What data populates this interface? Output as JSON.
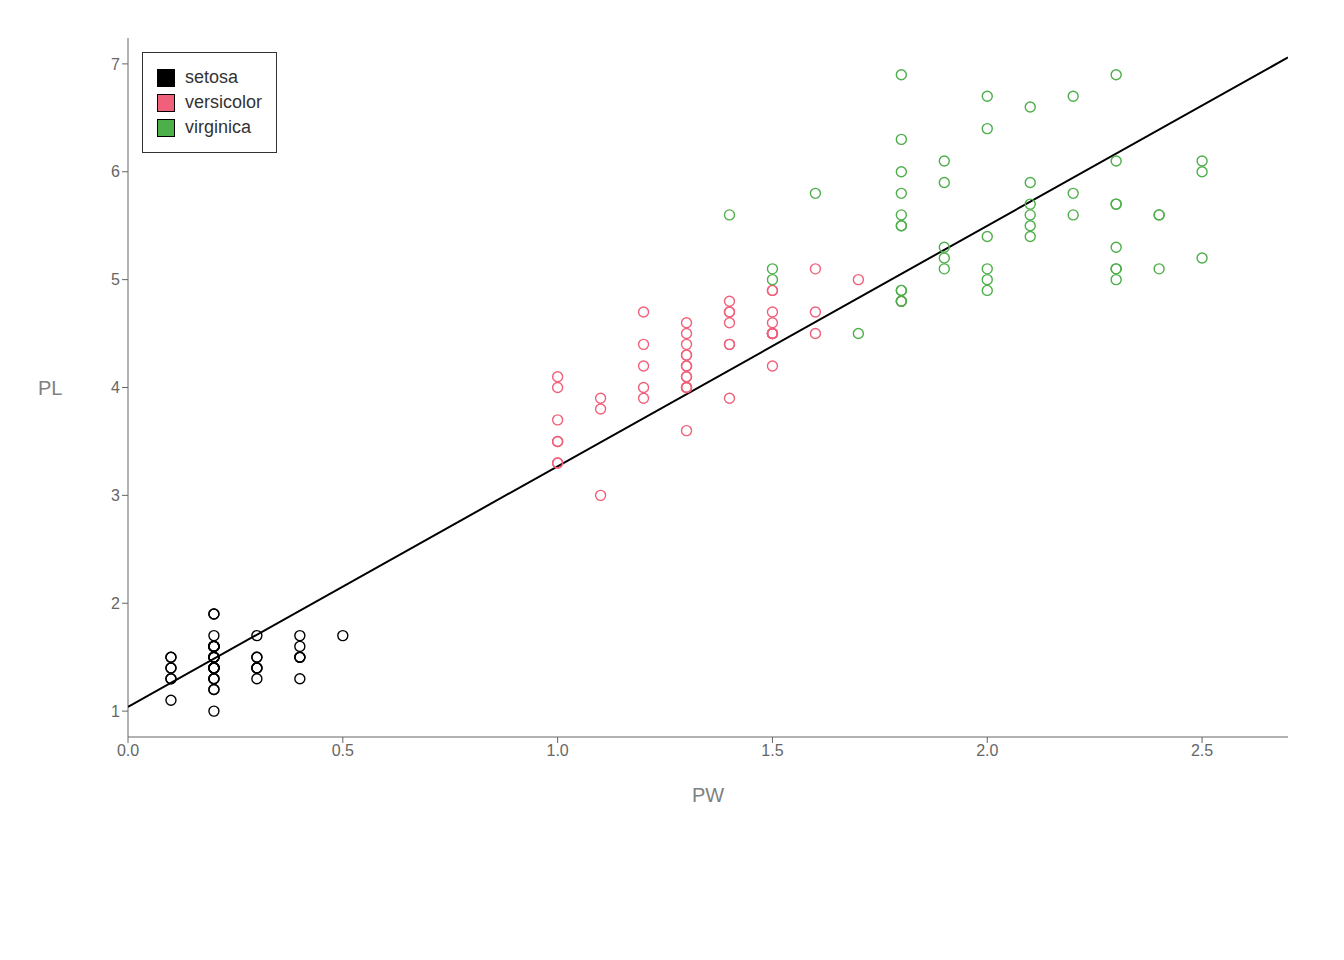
{
  "chart_data": {
    "type": "scatter",
    "title": "",
    "xlabel": "PW",
    "ylabel": "PL",
    "xlim": [
      0.0,
      2.7
    ],
    "ylim": [
      0.76,
      7.24
    ],
    "xticks": [
      {
        "value": 0,
        "label": "0.0"
      },
      0.5,
      {
        "value": 1,
        "label": "1.0"
      },
      1.5,
      {
        "value": 2,
        "label": "2.0"
      },
      2.5
    ],
    "yticks": [
      1,
      2,
      3,
      4,
      5,
      6,
      7
    ],
    "grid": false,
    "legend": "upper left",
    "series": [
      {
        "type": "line",
        "color": "#000000",
        "line_style": "solid",
        "x": [
          0.0,
          2.7
        ],
        "values": [
          1.0396,
          7.06006
        ]
      },
      {
        "name": "setosa",
        "type": "scatter",
        "marker": "open_circle",
        "color": "#000000",
        "x": [
          0.2,
          0.2,
          0.2,
          0.2,
          0.2,
          0.4,
          0.3,
          0.2,
          0.2,
          0.1,
          0.2,
          0.2,
          0.1,
          0.1,
          0.2,
          0.4,
          0.4,
          0.3,
          0.3,
          0.3,
          0.2,
          0.4,
          0.2,
          0.5,
          0.2,
          0.2,
          0.4,
          0.2,
          0.2,
          0.2,
          0.2,
          0.4,
          0.1,
          0.2,
          0.2,
          0.2,
          0.2,
          0.1,
          0.2,
          0.3,
          0.3,
          0.1,
          0.1,
          0.2,
          0.2,
          0.3,
          0.2,
          0.2,
          0.2,
          0.2
        ],
        "values": [
          1.4,
          1.4,
          1.3,
          1.5,
          1.4,
          1.7,
          1.4,
          1.5,
          1.4,
          1.5,
          1.5,
          1.6,
          1.4,
          1.1,
          1.2,
          1.5,
          1.3,
          1.4,
          1.7,
          1.5,
          1.7,
          1.5,
          1.0,
          1.7,
          1.9,
          1.6,
          1.6,
          1.5,
          1.4,
          1.6,
          1.6,
          1.5,
          1.5,
          1.4,
          1.5,
          1.2,
          1.3,
          1.4,
          1.3,
          1.5,
          1.3,
          1.3,
          1.3,
          1.6,
          1.9,
          1.4,
          1.6,
          1.4,
          1.5,
          1.4
        ]
      },
      {
        "name": "versicolor",
        "type": "scatter",
        "marker": "open_circle",
        "color": "#f0607a",
        "x": [
          1.4,
          1.5,
          1.5,
          1.3,
          1.5,
          1.3,
          1.6,
          1.0,
          1.3,
          1.4,
          1.0,
          1.5,
          1.0,
          1.4,
          1.3,
          1.4,
          1.5,
          1.0,
          1.5,
          1.1,
          1.8,
          1.3,
          1.5,
          1.2,
          1.3,
          1.4,
          1.4,
          1.7,
          1.5,
          1.0,
          1.1,
          1.0,
          1.2,
          1.6,
          1.5,
          1.6,
          1.5,
          1.3,
          1.3,
          1.3,
          1.2,
          1.4,
          1.2,
          1.0,
          1.3,
          1.2,
          1.3,
          1.3,
          1.1,
          1.3
        ],
        "values": [
          4.7,
          4.5,
          4.9,
          4.0,
          4.6,
          4.5,
          4.7,
          3.3,
          4.6,
          3.9,
          3.5,
          4.2,
          4.0,
          4.7,
          3.6,
          4.4,
          4.5,
          4.1,
          4.5,
          3.9,
          4.8,
          4.0,
          4.9,
          4.7,
          4.3,
          4.4,
          4.8,
          5.0,
          4.5,
          3.5,
          3.8,
          3.7,
          3.9,
          5.1,
          4.5,
          4.5,
          4.7,
          4.4,
          4.1,
          4.0,
          4.4,
          4.6,
          4.0,
          3.3,
          4.2,
          4.2,
          4.2,
          4.3,
          3.0,
          4.1
        ]
      },
      {
        "name": "virginica",
        "type": "scatter",
        "marker": "open_circle",
        "color": "#4daf4a",
        "x": [
          2.5,
          1.9,
          2.1,
          1.8,
          2.2,
          2.1,
          1.7,
          1.8,
          1.8,
          2.5,
          2.0,
          1.9,
          2.1,
          2.0,
          2.4,
          2.3,
          1.8,
          2.2,
          2.3,
          1.5,
          2.3,
          2.0,
          2.0,
          1.8,
          2.1,
          1.8,
          1.8,
          1.8,
          2.1,
          1.6,
          1.9,
          2.0,
          2.2,
          1.5,
          1.4,
          2.3,
          2.4,
          1.8,
          1.8,
          2.1,
          2.4,
          2.3,
          1.9,
          2.3,
          2.5,
          2.3,
          1.9,
          2.0,
          2.3,
          1.8
        ],
        "values": [
          6.0,
          5.1,
          5.9,
          5.6,
          5.8,
          6.6,
          4.5,
          6.3,
          5.8,
          6.1,
          5.1,
          5.3,
          5.5,
          5.0,
          5.1,
          5.3,
          5.5,
          6.7,
          6.9,
          5.0,
          5.7,
          4.9,
          6.7,
          4.9,
          5.7,
          6.0,
          4.8,
          4.9,
          5.6,
          5.8,
          6.1,
          6.4,
          5.6,
          5.1,
          5.6,
          6.1,
          5.6,
          5.5,
          4.8,
          5.4,
          5.6,
          5.1,
          5.9,
          5.7,
          5.2,
          5.0,
          5.2,
          5.4,
          5.1,
          6.9
        ]
      }
    ]
  }
}
